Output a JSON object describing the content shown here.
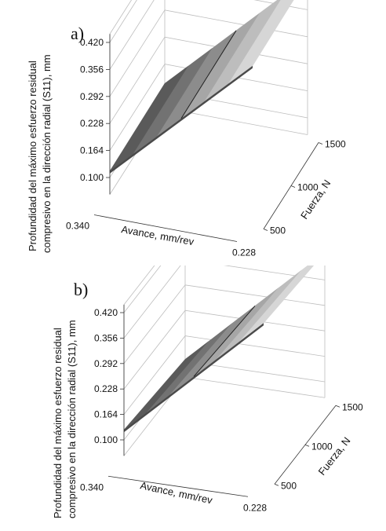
{
  "chart_data": [
    {
      "panel_label": "a)",
      "type": "surface",
      "xlabel": "Avance, mm/rev",
      "ylabel": "Fuerza, N",
      "zlabel_lines": [
        "Profundidad del máximo esfuerzo residual",
        "compresivo en la dirección radial (S11), mm"
      ],
      "x_ticks": [
        "0.340",
        "0.228"
      ],
      "y_ticks": [
        "500",
        "1000",
        "1500"
      ],
      "z_ticks": [
        "0.100",
        "0.164",
        "0.228",
        "0.292",
        "0.356",
        "0.420"
      ],
      "x_range": [
        0.34,
        0.228
      ],
      "y_range": [
        500,
        1500
      ],
      "z_range": [
        0.1,
        0.42
      ],
      "surface": {
        "low_edge": {
          "avance": 0.34,
          "z_at_500": 0.115,
          "z_at_1500": 0.118
        },
        "high_edge": {
          "avance": 0.228,
          "z_at_500": 0.428,
          "z_at_1500": 0.432
        }
      }
    },
    {
      "panel_label": "b)",
      "type": "surface",
      "xlabel": "Avance, mm/rev",
      "ylabel": "Fuerza, N",
      "zlabel_lines": [
        "Profundidad del máximo esfuerzo residual",
        "compresivo en la dirección radial (S11), mm"
      ],
      "x_ticks": [
        "0.340",
        "0.228"
      ],
      "y_ticks": [
        "500",
        "1000",
        "1500"
      ],
      "z_ticks": [
        "0.100",
        "0.164",
        "0.228",
        "0.292",
        "0.356",
        "0.420"
      ],
      "x_range": [
        0.34,
        0.228
      ],
      "y_range": [
        500,
        1500
      ],
      "z_range": [
        0.1,
        0.42
      ],
      "surface": {
        "low_edge": {
          "avance": 0.34,
          "z_at_500": 0.125,
          "z_at_1500": 0.105
        },
        "high_edge": {
          "avance": 0.228,
          "z_at_500": 0.445,
          "z_at_1500": 0.425
        }
      }
    }
  ],
  "colors": {
    "band_1": "#5a5a5a",
    "band_2": "#727272",
    "band_3": "#8c8c8c",
    "band_4": "#a6a6a6",
    "band_5": "#bdbdbd",
    "band_6": "#d6d6d6",
    "frame": "#bdbdbd"
  }
}
